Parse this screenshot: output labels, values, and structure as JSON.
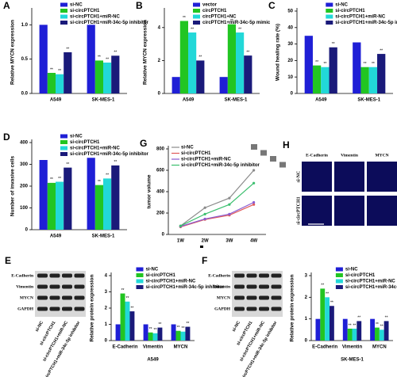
{
  "chart_data": [
    {
      "type": "bar",
      "label": "A",
      "ylabel": "Relative MYCN expression",
      "categories": [
        "A549",
        "SK-MES-1"
      ],
      "annotation": "**",
      "series": [
        {
          "name": "si-NC",
          "color": "#1f1fd6",
          "values": [
            1.0,
            1.0
          ]
        },
        {
          "name": "si-circPTCH1",
          "color": "#22c522",
          "values": [
            0.3,
            0.48
          ]
        },
        {
          "name": "si-circPTCH1+miR-NC",
          "color": "#22d8d8",
          "values": [
            0.28,
            0.45
          ]
        },
        {
          "name": "si-circPTCH1+miR-34c-5p inhibitor",
          "color": "#1a1a7a",
          "values": [
            0.6,
            0.55
          ]
        }
      ],
      "ylim": [
        0,
        1.2
      ],
      "yticks": [
        {
          "value": 0,
          "label": "0.0"
        },
        {
          "value": 0.5,
          "label": "0.5"
        },
        {
          "value": 1,
          "label": "1.0"
        }
      ]
    },
    {
      "type": "bar",
      "label": "B",
      "ylabel": "Relative MYCN expression",
      "categories": [
        "A549",
        "SK-MES-1"
      ],
      "annotation": "**",
      "series": [
        {
          "name": "vector",
          "color": "#1f1fd6",
          "values": [
            1.0,
            1.0
          ]
        },
        {
          "name": "circPTCH1",
          "color": "#22c522",
          "values": [
            4.4,
            4.2
          ]
        },
        {
          "name": "circPTCH1+NC",
          "color": "#22d8d8",
          "values": [
            3.7,
            3.7
          ]
        },
        {
          "name": "circPTCH1+miR-34c-5p mimic",
          "color": "#1a1a7a",
          "values": [
            2.0,
            2.3
          ]
        }
      ],
      "ylim": [
        0,
        5
      ],
      "yticks": [
        0,
        2,
        4
      ]
    },
    {
      "type": "bar",
      "label": "C",
      "ylabel": "Wound healing rate (%)",
      "categories": [
        "A549",
        "SK-MES-1"
      ],
      "annotation": "**",
      "series": [
        {
          "name": "si-NC",
          "color": "#1f1fd6",
          "values": [
            35,
            31
          ]
        },
        {
          "name": "si-circPTCH1",
          "color": "#22c522",
          "values": [
            17,
            16
          ]
        },
        {
          "name": "si-circPTCH1+miR-NC",
          "color": "#22d8d8",
          "values": [
            16,
            16
          ]
        },
        {
          "name": "si-circPTCH1+miR-34c-5p inhibitor",
          "color": "#1a1a7a",
          "values": [
            28,
            24
          ]
        }
      ],
      "ylim": [
        0,
        50
      ],
      "yticks": [
        0,
        10,
        20,
        30,
        40,
        50
      ]
    },
    {
      "type": "bar",
      "label": "D",
      "ylabel": "Number of invasive cells",
      "categories": [
        "A549",
        "SK-MES-1"
      ],
      "annotation": "**",
      "series": [
        {
          "name": "si-NC",
          "color": "#1f1fd6",
          "values": [
            320,
            330
          ]
        },
        {
          "name": "si-circPTCH1",
          "color": "#22c522",
          "values": [
            215,
            205
          ]
        },
        {
          "name": "si-circPTCH1+miR-NC",
          "color": "#22d8d8",
          "values": [
            220,
            235
          ]
        },
        {
          "name": "si-circPTCH1+miR-34c-5p inhibitor",
          "color": "#1a1a7a",
          "values": [
            285,
            295
          ]
        }
      ],
      "ylim": [
        0,
        400
      ],
      "yticks": [
        0,
        100,
        200,
        300,
        400
      ]
    },
    {
      "type": "line",
      "label": "G",
      "ylabel": "tumor volume",
      "categories": [
        "1W",
        "2W",
        "3W",
        "4W"
      ],
      "series": [
        {
          "name": "si-NC",
          "color": "#8a8a8a",
          "values": [
            80,
            250,
            340,
            600
          ]
        },
        {
          "name": "si-circPTCH1",
          "color": "#e05a5a",
          "values": [
            70,
            140,
            180,
            280
          ]
        },
        {
          "name": "si-circPTCH1+miR-NC",
          "color": "#8a5ad0",
          "values": [
            75,
            145,
            190,
            300
          ]
        },
        {
          "name": "si-circPTCH1+miR-34c-5p inhibitor",
          "color": "#3bbf6e",
          "values": [
            80,
            190,
            280,
            480
          ]
        }
      ],
      "ylim": [
        0,
        800
      ],
      "yticks": [
        0,
        200,
        400,
        600,
        800
      ]
    },
    {
      "type": "bar",
      "ylabel": "Relative protein expression",
      "xlabel": "A549",
      "categories": [
        "E-Cadherin",
        "Vimentin",
        "MYCN"
      ],
      "annotation": "**",
      "series": [
        {
          "name": "si-NC",
          "color": "#1f1fd6",
          "values": [
            1,
            1,
            1
          ]
        },
        {
          "name": "si-circPTCH1",
          "color": "#22c522",
          "values": [
            2.9,
            0.5,
            0.6
          ]
        },
        {
          "name": "si-circPTCH1+miR-NC",
          "color": "#22d8d8",
          "values": [
            2.4,
            0.45,
            0.55
          ]
        },
        {
          "name": "si-circPTCH1+miR-34c-5p inhibitor",
          "color": "#1a1a7a",
          "values": [
            1.8,
            0.8,
            0.85
          ]
        }
      ],
      "ylim": [
        0,
        4
      ],
      "yticks": [
        0,
        1,
        2,
        3,
        4
      ]
    },
    {
      "type": "bar",
      "ylabel": "Relative protein expression",
      "xlabel": "SK-MES-1",
      "categories": [
        "E-Cadherin",
        "Vimentin",
        "MYCN"
      ],
      "annotation": "**",
      "series": [
        {
          "name": "si-NC",
          "color": "#1f1fd6",
          "values": [
            1,
            1,
            1
          ]
        },
        {
          "name": "si-circPTCH1",
          "color": "#22c522",
          "values": [
            2.4,
            0.55,
            0.6
          ]
        },
        {
          "name": "si-circPTCH1+miR-NC",
          "color": "#22d8d8",
          "values": [
            2.0,
            0.55,
            0.5
          ]
        },
        {
          "name": "si-circPTCH1+miR-34c-5p inhibitor",
          "color": "#1a1a7a",
          "values": [
            1.6,
            0.9,
            0.9
          ]
        }
      ],
      "ylim": [
        0,
        3
      ],
      "yticks": [
        0,
        1,
        2,
        3
      ]
    }
  ],
  "blots": [
    {
      "label": "E",
      "proteins": [
        "E-Cadherin",
        "Vimentin",
        "MYCN",
        "GAPDH"
      ],
      "lanes": [
        "si-NC",
        "si-circPTCH1",
        "si-circPTCH1+miR-NC",
        "si-circPTCH1+miR-34c-5p inhibitor"
      ]
    },
    {
      "label": "F",
      "proteins": [
        "E-Cadherin",
        "Vimentin",
        "MYCN",
        "GAPDH"
      ],
      "lanes": [
        "si-NC",
        "si-circPTCH1",
        "si-circPTCH1+miR-NC",
        "si-circPTCH1+miR-34c-5p inhibitor"
      ]
    }
  ],
  "micrographs": {
    "label": "H",
    "columns": [
      "E-Cadherin",
      "Vimentin",
      "MYCN"
    ],
    "rows": [
      "si-NC",
      "si-circPTCH1"
    ]
  }
}
